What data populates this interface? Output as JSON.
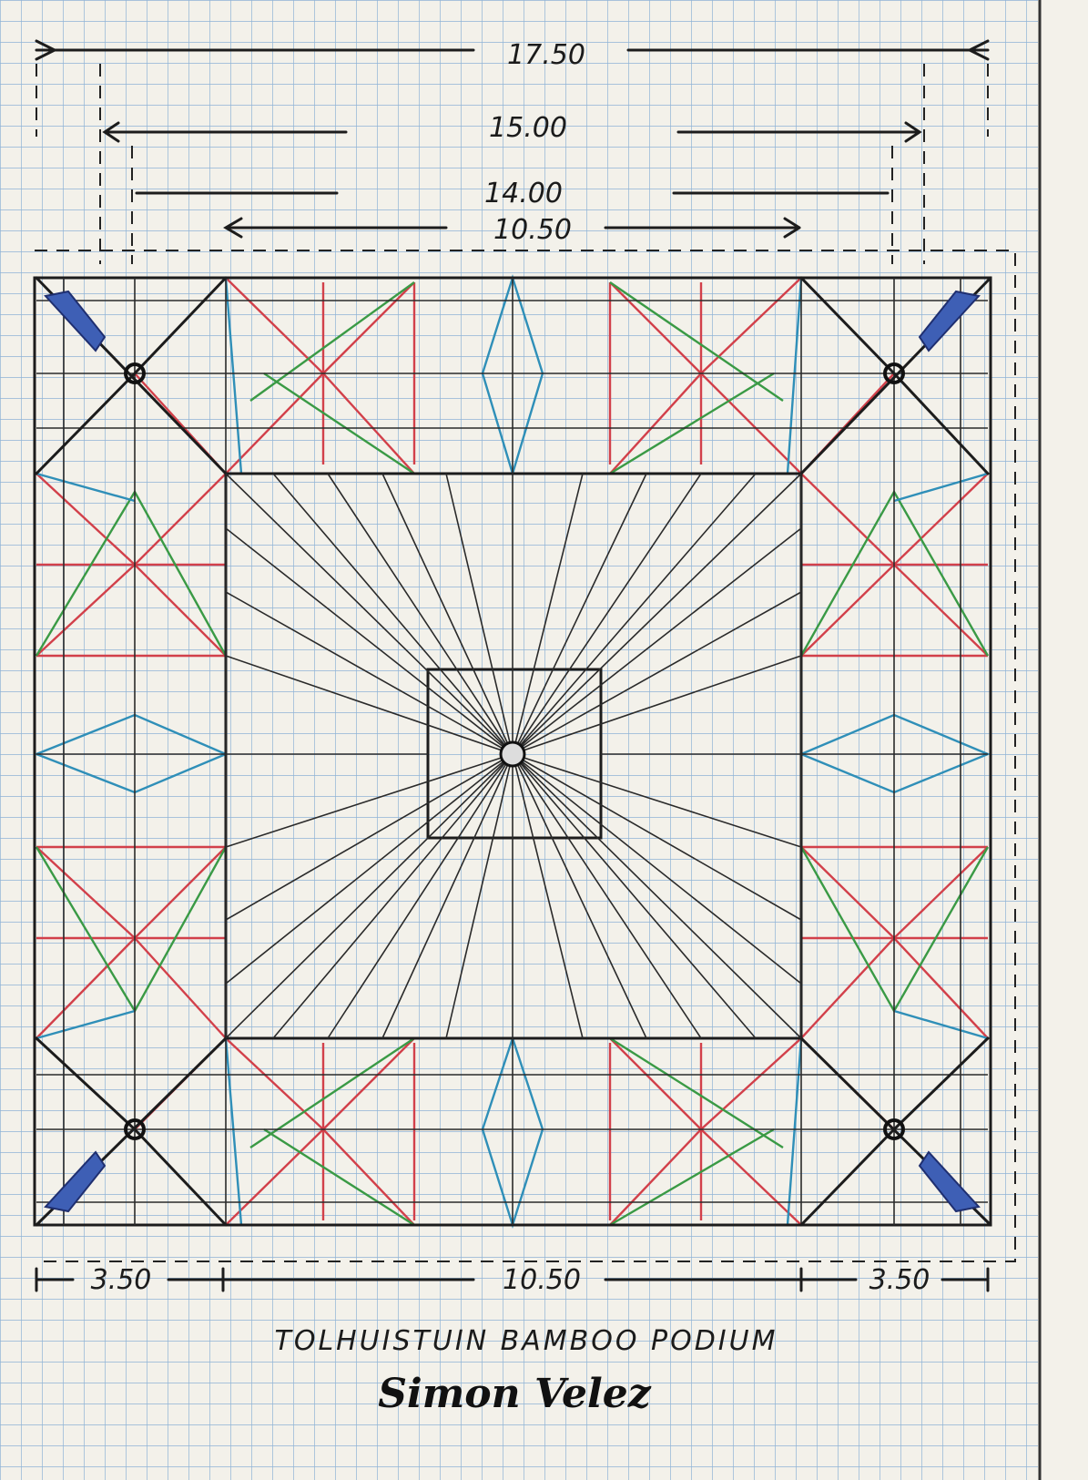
{
  "dimensions": {
    "overall": "17.50",
    "outer": "15.00",
    "inner": "14.00",
    "center": "10.50"
  },
  "bottom_dimensions": [
    "3.50",
    "10.50",
    "3.50"
  ],
  "title": "TOLHUISTUIN BAMBOO PODIUM",
  "signature": "Simon Velez"
}
